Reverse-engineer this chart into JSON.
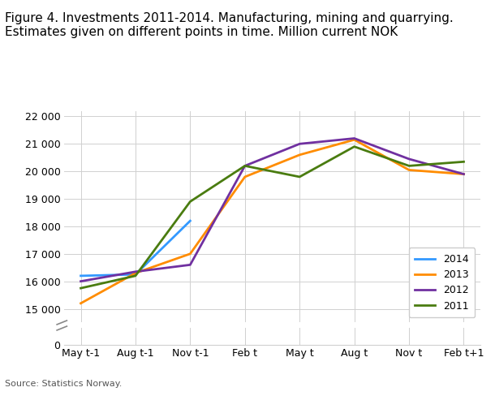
{
  "title": "Figure 4. Investments 2011-2014. Manufacturing, mining and quarrying.\nEstimates given on different points in time. Million current NOK",
  "source": "Source: Statistics Norway.",
  "x_labels": [
    "May t-1",
    "Aug t-1",
    "Nov t-1",
    "Feb t",
    "May t",
    "Aug t",
    "Nov t",
    "Feb t+1"
  ],
  "series": {
    "2014": {
      "color": "#3399ff",
      "values": [
        16200,
        16250,
        18200,
        null,
        null,
        null,
        null,
        null
      ]
    },
    "2013": {
      "color": "#ff8c00",
      "values": [
        15200,
        16300,
        17000,
        19800,
        20600,
        21150,
        20050,
        19900
      ]
    },
    "2012": {
      "color": "#7030a0",
      "values": [
        16000,
        16350,
        16600,
        20200,
        21000,
        21200,
        20450,
        19900
      ]
    },
    "2011": {
      "color": "#4a7c10",
      "values": [
        15750,
        16200,
        18900,
        20200,
        19800,
        20900,
        20200,
        20350
      ]
    }
  },
  "background_color": "#ffffff",
  "grid_color": "#d0d0d0",
  "legend_order": [
    "2014",
    "2013",
    "2012",
    "2011"
  ],
  "upper_ylim": [
    14500,
    22200
  ],
  "upper_yticks": [
    15000,
    16000,
    17000,
    18000,
    19000,
    20000,
    21000,
    22000
  ],
  "lower_ylim": [
    0,
    1000
  ],
  "lower_ytick": 0,
  "title_fontsize": 11,
  "linewidth": 2.0
}
